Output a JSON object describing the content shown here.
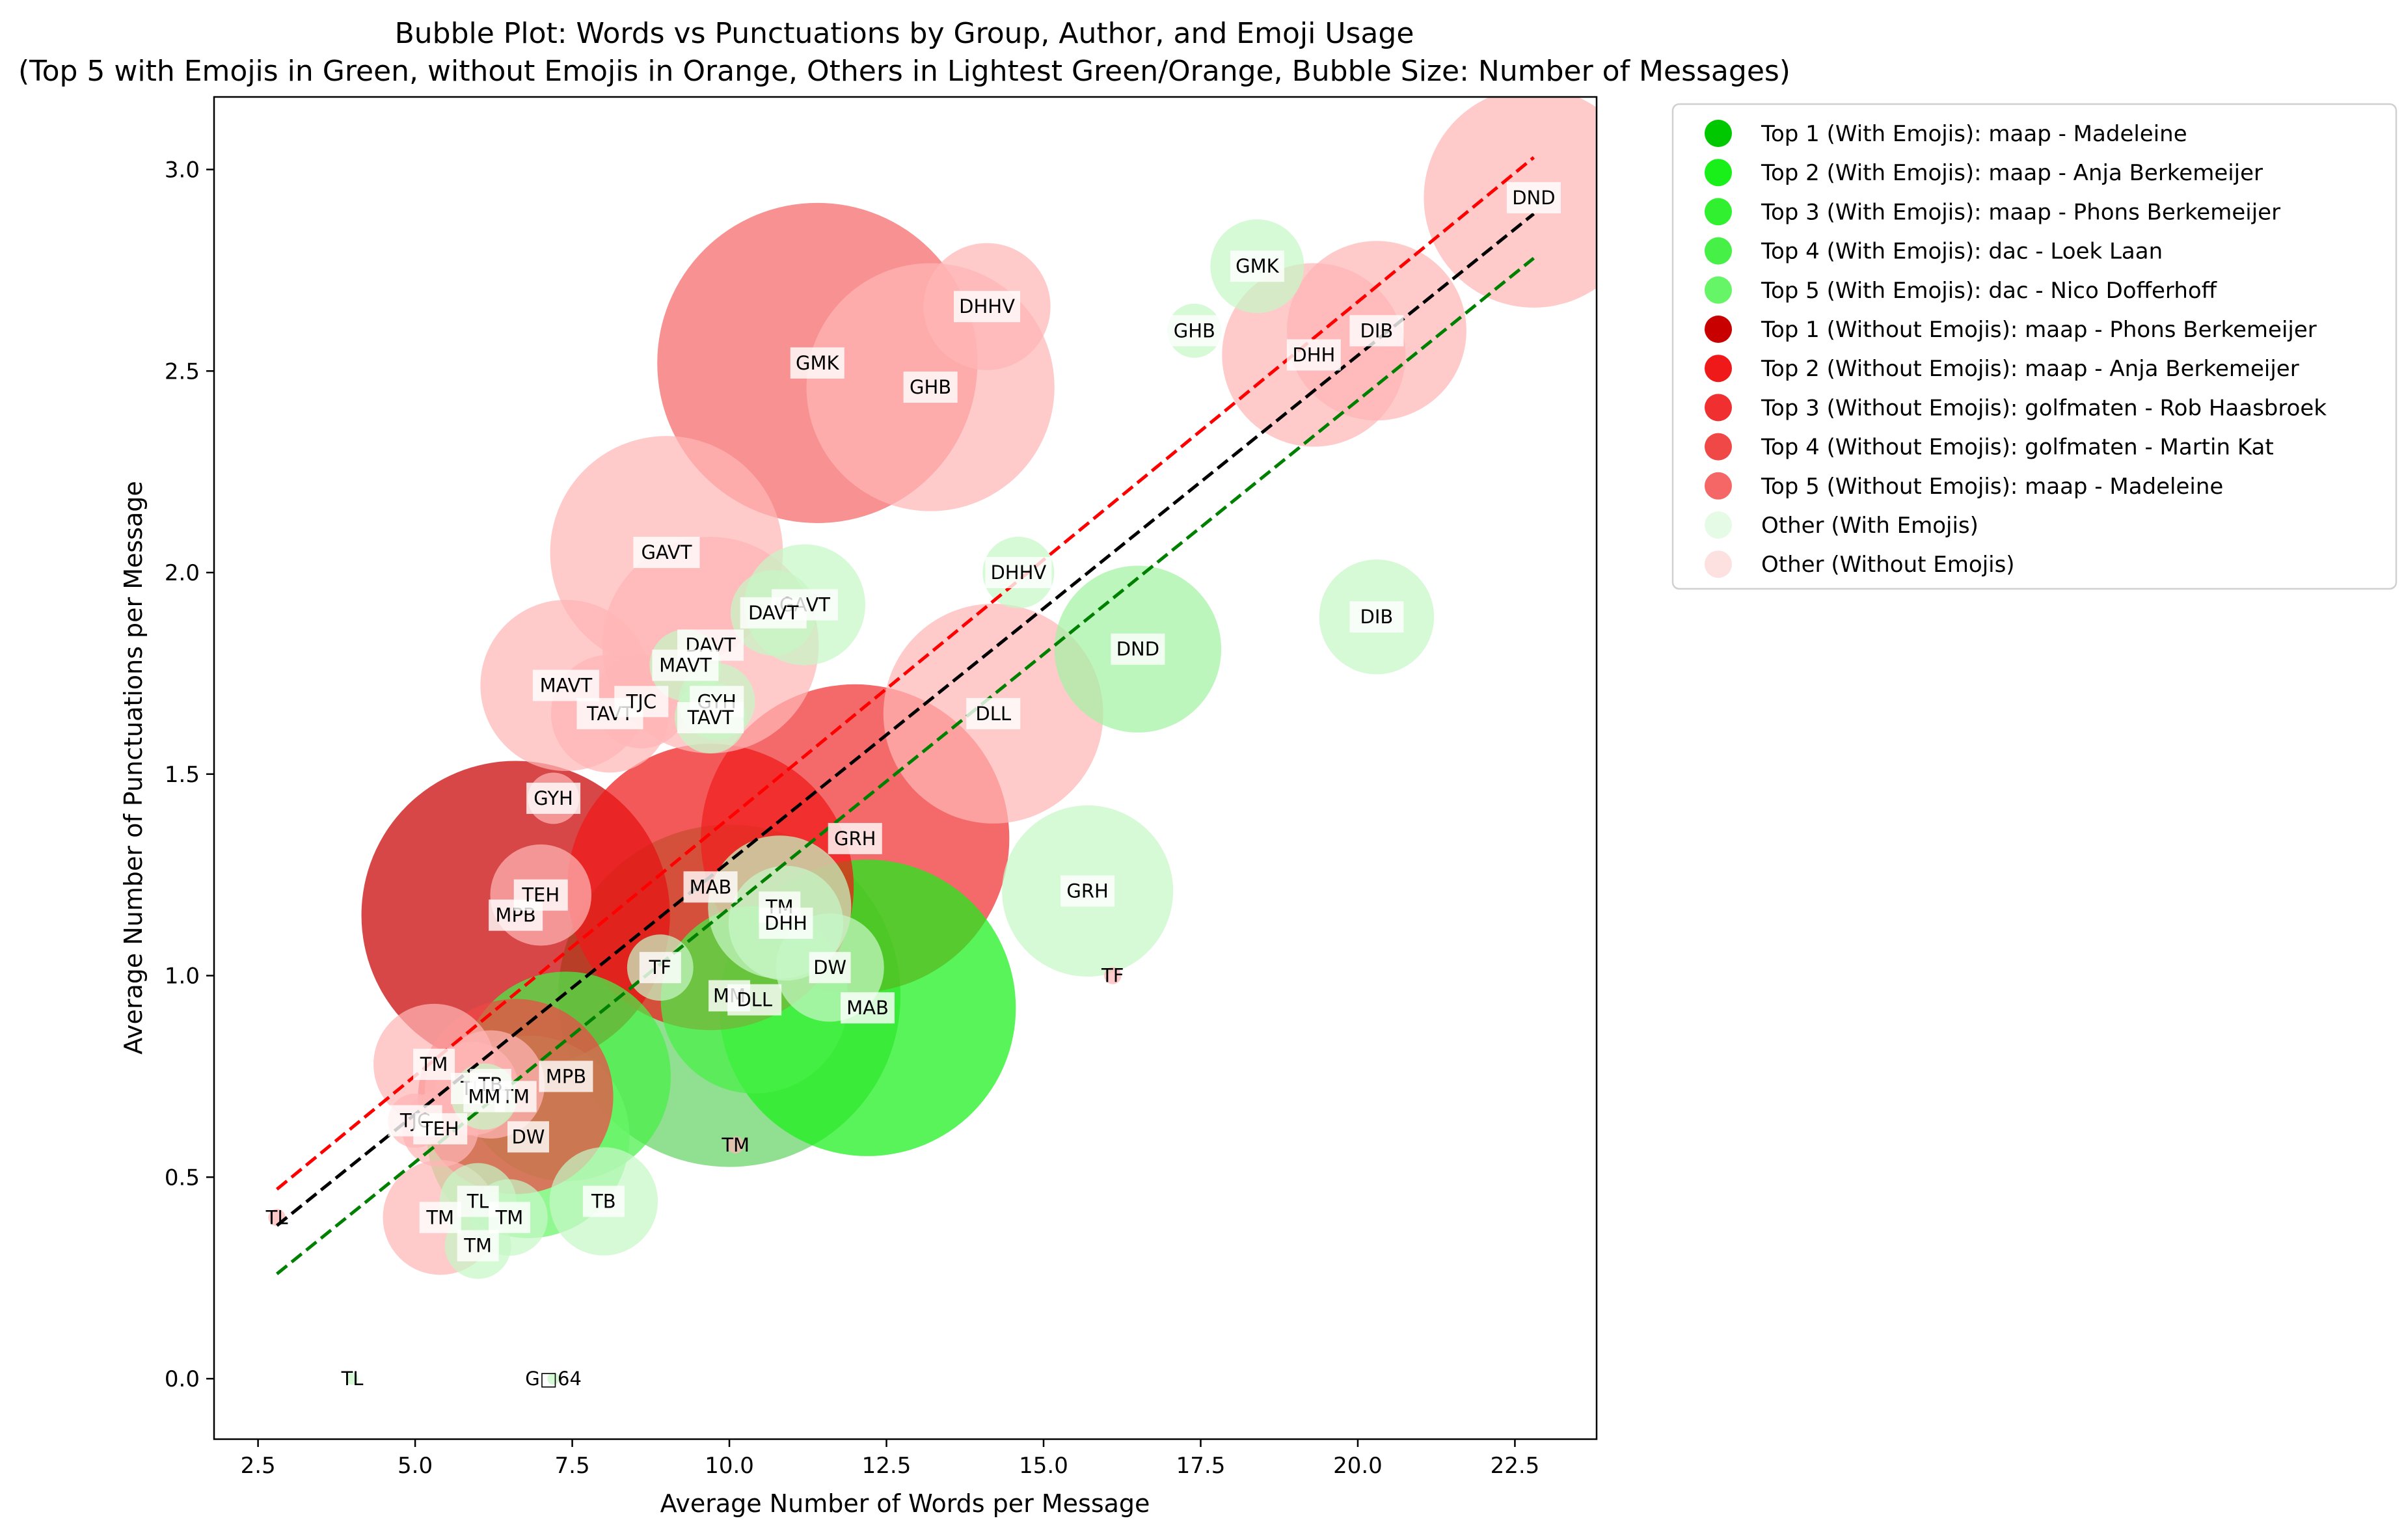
{
  "chart_data": {
    "type": "scatter",
    "title": "Bubble Plot: Words vs Punctuations by Group, Author, and Emoji Usage",
    "subtitle": "(Top 5 with Emojis in Green, without Emojis in Orange, Others in Lightest Green/Orange, Bubble Size: Number of Messages)",
    "xlabel": "Average Number of Words per Message",
    "ylabel": "Average Number of Punctuations per Message",
    "xlim": [
      1.8,
      23.8
    ],
    "ylim": [
      -0.15,
      3.18
    ],
    "xticks": [
      2.5,
      5.0,
      7.5,
      10.0,
      12.5,
      15.0,
      17.5,
      20.0,
      22.5
    ],
    "xtick_labels": [
      "2.5",
      "5.0",
      "7.5",
      "10.0",
      "12.5",
      "15.0",
      "17.5",
      "20.0",
      "22.5"
    ],
    "yticks": [
      0.0,
      0.5,
      1.0,
      1.5,
      2.0,
      2.5,
      3.0
    ],
    "ytick_labels": [
      "0.0",
      "0.5",
      "1.0",
      "1.5",
      "2.0",
      "2.5",
      "3.0"
    ],
    "grid": false,
    "legend_position": "outside-right-top",
    "legend": [
      {
        "label": "Top 1 (With Emojis): maap - Madeleine",
        "color": "#00c800"
      },
      {
        "label": "Top 2 (With Emojis): maap - Anja Berkemeijer",
        "color": "#19f019"
      },
      {
        "label": "Top 3 (With Emojis): maap - Phons Berkemeijer",
        "color": "#30f030"
      },
      {
        "label": "Top 4 (With Emojis): dac - Loek Laan",
        "color": "#47f047"
      },
      {
        "label": "Top 5 (With Emojis): dac - Nico Dofferhoff",
        "color": "#66f566"
      },
      {
        "label": "Top 1 (Without Emojis): maap - Phons Berkemeijer",
        "color": "#c80000"
      },
      {
        "label": "Top 2 (Without Emojis): maap - Anja Berkemeijer",
        "color": "#f01919"
      },
      {
        "label": "Top 3 (Without Emojis): golfmaten - Rob Haasbroek",
        "color": "#f03030"
      },
      {
        "label": "Top 4 (Without Emojis): golfmaten - Martin Kat",
        "color": "#f04747"
      },
      {
        "label": "Top 5 (Without Emojis): maap - Madeleine",
        "color": "#f56666"
      },
      {
        "label": "Other (With Emojis)",
        "color": "#e5fbe5"
      },
      {
        "label": "Other (Without Emojis)",
        "color": "#fde0e0"
      }
    ],
    "trend_lines": [
      {
        "color": "#ff0000",
        "x": [
          2.8,
          22.8
        ],
        "y": [
          0.47,
          3.03
        ]
      },
      {
        "color": "#000000",
        "x": [
          2.8,
          22.8
        ],
        "y": [
          0.38,
          2.89
        ]
      },
      {
        "color": "#008000",
        "x": [
          2.8,
          22.8
        ],
        "y": [
          0.26,
          2.78
        ]
      }
    ],
    "series": [
      {
        "name": "Without Emojis",
        "points": [
          {
            "label": "DND",
            "x": 22.8,
            "y": 2.93,
            "messages": 330,
            "color": "#ffb6b6"
          },
          {
            "label": "DIB",
            "x": 20.3,
            "y": 2.6,
            "messages": 220,
            "color": "#ffb6b6"
          },
          {
            "label": "DHH",
            "x": 19.3,
            "y": 2.54,
            "messages": 230,
            "color": "#ffb6b6"
          },
          {
            "label": "DHHV",
            "x": 14.1,
            "y": 2.66,
            "messages": 110,
            "color": "#ffb6b6"
          },
          {
            "label": "GMK",
            "x": 11.4,
            "y": 2.52,
            "messages": 700,
            "color": "#f56666"
          },
          {
            "label": "GHB",
            "x": 13.2,
            "y": 2.46,
            "messages": 420,
            "color": "#ffb6b6"
          },
          {
            "label": "GAVT",
            "x": 9.0,
            "y": 2.05,
            "messages": 370,
            "color": "#ffb6b6"
          },
          {
            "label": "DAVT",
            "x": 9.7,
            "y": 1.82,
            "messages": 320,
            "color": "#ffb6b6"
          },
          {
            "label": "MAVT",
            "x": 7.4,
            "y": 1.72,
            "messages": 200,
            "color": "#ffb6b6"
          },
          {
            "label": "TAVT",
            "x": 8.1,
            "y": 1.65,
            "messages": 95,
            "color": "#ffb6b6"
          },
          {
            "label": "TJC",
            "x": 8.6,
            "y": 1.68,
            "messages": 60,
            "color": "#ffb6b6"
          },
          {
            "label": "DLL",
            "x": 14.2,
            "y": 1.65,
            "messages": 330,
            "color": "#ffb6b6"
          },
          {
            "label": "GYH",
            "x": 7.2,
            "y": 1.44,
            "messages": 18,
            "color": "#ffb6b6"
          },
          {
            "label": "GRH",
            "x": 12.0,
            "y": 1.34,
            "messages": 650,
            "color": "#f03030"
          },
          {
            "label": "MAB",
            "x": 9.7,
            "y": 1.22,
            "messages": 560,
            "color": "#f01919"
          },
          {
            "label": "MPB",
            "x": 6.6,
            "y": 1.15,
            "messages": 650,
            "color": "#c80000"
          },
          {
            "label": "TEH",
            "x": 7.0,
            "y": 1.2,
            "messages": 70,
            "color": "#ffb6b6"
          },
          {
            "label": "TM",
            "x": 6.6,
            "y": 0.7,
            "messages": 260,
            "color": "#f04747"
          },
          {
            "label": "TM",
            "x": 5.3,
            "y": 0.78,
            "messages": 100,
            "color": "#ffb6b6"
          },
          {
            "label": "TL",
            "x": 5.9,
            "y": 0.72,
            "messages": 60,
            "color": "#ffb6b6"
          },
          {
            "label": "TB",
            "x": 6.2,
            "y": 0.73,
            "messages": 80,
            "color": "#ffb6b6"
          },
          {
            "label": "TJC",
            "x": 5.0,
            "y": 0.64,
            "messages": 20,
            "color": "#ffb6b6"
          },
          {
            "label": "TEH",
            "x": 5.4,
            "y": 0.62,
            "messages": 40,
            "color": "#ffb6b6"
          },
          {
            "label": "TM",
            "x": 5.4,
            "y": 0.4,
            "messages": 90,
            "color": "#ffb6b6"
          },
          {
            "label": "TM",
            "x": 10.1,
            "y": 0.58,
            "messages": 2,
            "color": "#ffb6b6"
          },
          {
            "label": "TL",
            "x": 2.8,
            "y": 0.4,
            "messages": 2,
            "color": "#ffb6b6"
          },
          {
            "label": "TF",
            "x": 16.1,
            "y": 1.0,
            "messages": 2,
            "color": "#ffb6b6"
          }
        ]
      },
      {
        "name": "With Emojis",
        "points": [
          {
            "label": "GMK",
            "x": 18.4,
            "y": 2.76,
            "messages": 60,
            "color": "#c6f7c6"
          },
          {
            "label": "GHB",
            "x": 17.4,
            "y": 2.6,
            "messages": 20,
            "color": "#c6f7c6"
          },
          {
            "label": "DHHV",
            "x": 14.6,
            "y": 2.0,
            "messages": 35,
            "color": "#c6f7c6"
          },
          {
            "label": "DIB",
            "x": 20.3,
            "y": 1.89,
            "messages": 90,
            "color": "#c6f7c6"
          },
          {
            "label": "DND",
            "x": 16.5,
            "y": 1.81,
            "messages": 190,
            "color": "#a4f3a4"
          },
          {
            "label": "GAVT",
            "x": 11.2,
            "y": 1.92,
            "messages": 100,
            "color": "#c6f7c6"
          },
          {
            "label": "DAVT",
            "x": 10.7,
            "y": 1.9,
            "messages": 50,
            "color": "#c6f7c6"
          },
          {
            "label": "MAVT",
            "x": 9.3,
            "y": 1.77,
            "messages": 35,
            "color": "#c6f7c6"
          },
          {
            "label": "GYH",
            "x": 9.8,
            "y": 1.68,
            "messages": 40,
            "color": "#c6f7c6"
          },
          {
            "label": "TAVT",
            "x": 9.7,
            "y": 1.64,
            "messages": 35,
            "color": "#c6f7c6"
          },
          {
            "label": "GRH",
            "x": 15.7,
            "y": 1.21,
            "messages": 200,
            "color": "#c6f7c6"
          },
          {
            "label": "TM",
            "x": 10.8,
            "y": 1.17,
            "messages": 140,
            "color": "#c6f7c6"
          },
          {
            "label": "DHH",
            "x": 10.9,
            "y": 1.13,
            "messages": 90,
            "color": "#c6f7c6"
          },
          {
            "label": "TF",
            "x": 8.9,
            "y": 1.02,
            "messages": 30,
            "color": "#c6f7c6"
          },
          {
            "label": "MM",
            "x": 10.0,
            "y": 0.95,
            "messages": 800,
            "color": "#66d266"
          },
          {
            "label": "DLL",
            "x": 10.4,
            "y": 0.94,
            "messages": 240,
            "color": "#47f047"
          },
          {
            "label": "DW",
            "x": 11.6,
            "y": 1.02,
            "messages": 80,
            "color": "#c6f7c6"
          },
          {
            "label": "MAB",
            "x": 12.2,
            "y": 0.92,
            "messages": 600,
            "color": "#19f019"
          },
          {
            "label": "MPB",
            "x": 7.4,
            "y": 0.75,
            "messages": 300,
            "color": "#47f047"
          },
          {
            "label": "DW",
            "x": 6.8,
            "y": 0.6,
            "messages": 280,
            "color": "#66f566"
          },
          {
            "label": "MM",
            "x": 6.1,
            "y": 0.7,
            "messages": 30,
            "color": "#c6f7c6"
          },
          {
            "label": "TB",
            "x": 8.0,
            "y": 0.44,
            "messages": 80,
            "color": "#c6f7c6"
          },
          {
            "label": "TL",
            "x": 6.0,
            "y": 0.44,
            "messages": 40,
            "color": "#c6f7c6"
          },
          {
            "label": "TM",
            "x": 6.5,
            "y": 0.4,
            "messages": 40,
            "color": "#c6f7c6"
          },
          {
            "label": "TM",
            "x": 6.0,
            "y": 0.33,
            "messages": 30,
            "color": "#c6f7c6"
          },
          {
            "label": "TL",
            "x": 4.0,
            "y": 0.0,
            "messages": 1,
            "color": "#c6f7c6"
          },
          {
            "label": "G□64",
            "x": 7.2,
            "y": 0.0,
            "messages": 1,
            "color": "#c6f7c6"
          }
        ]
      }
    ]
  }
}
